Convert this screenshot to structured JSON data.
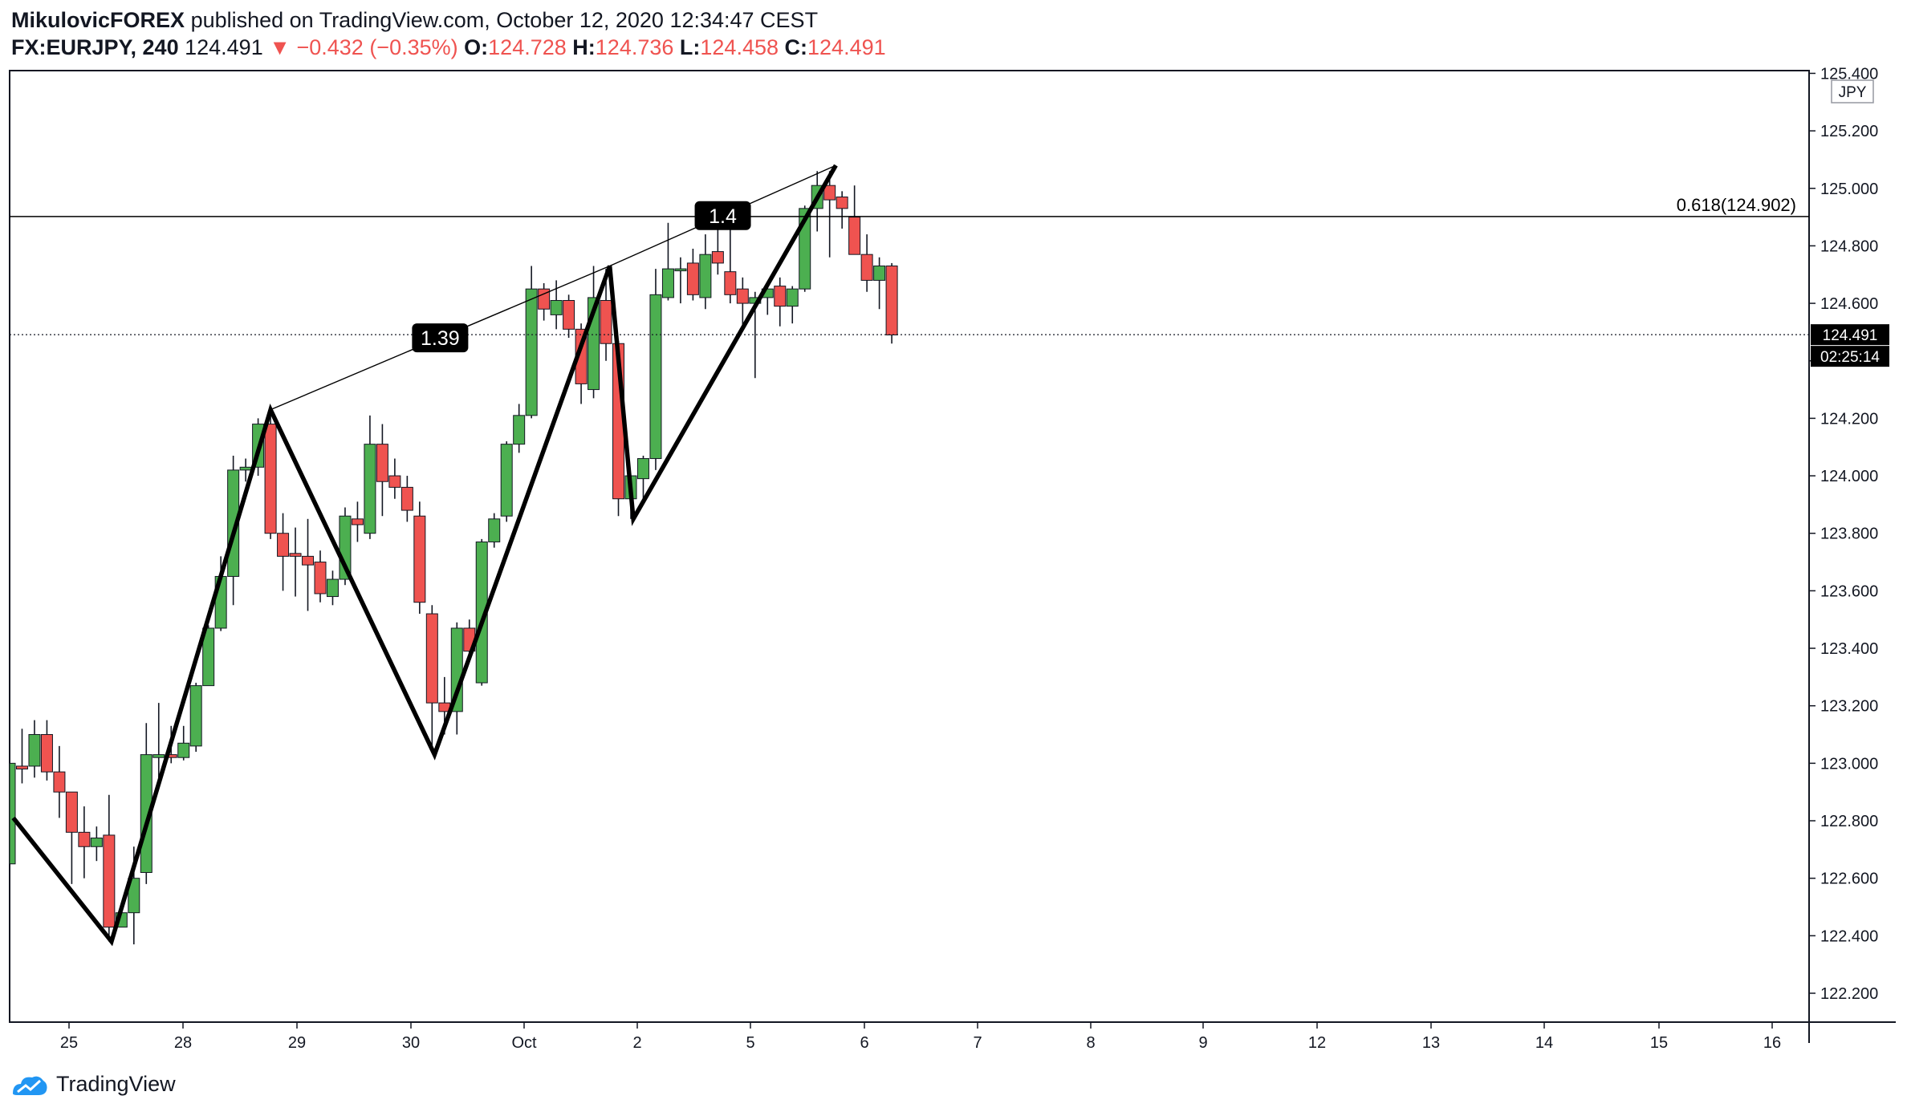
{
  "header": {
    "author": "MikulovicFOREX",
    "published_text": "published on TradingView.com, October 12, 2020 12:34:47 CEST",
    "symbol": "FX:EURJPY, 240",
    "last": "124.491",
    "change": "−0.432 (−0.35%)",
    "o_label": "O:",
    "o_value": "124.728",
    "h_label": "H:",
    "h_value": "124.736",
    "l_label": "L:",
    "l_value": "124.458",
    "c_label": "C:",
    "c_value": "124.491"
  },
  "currency_label": "JPY",
  "price_badge": "124.491",
  "countdown_badge": "02:25:14",
  "fib_label": "0.618(124.902)",
  "ratio_labels": [
    "1.39",
    "1.4"
  ],
  "footer_brand": "TradingView",
  "colors": {
    "up": "#4caf50",
    "down": "#ef5350",
    "wick": "#131722",
    "fib_line": "#000000"
  },
  "chart_data": {
    "type": "candlestick",
    "timeframe": "240",
    "ylim": [
      122.1,
      125.45
    ],
    "yticks": [
      "125.400",
      "125.200",
      "125.000",
      "124.800",
      "124.600",
      "124.400",
      "124.200",
      "124.000",
      "123.800",
      "123.600",
      "123.400",
      "123.200",
      "123.000",
      "122.800",
      "122.600",
      "122.400",
      "122.200"
    ],
    "xticks": [
      "25",
      "28",
      "29",
      "30",
      "Oct",
      "2",
      "5",
      "6",
      "7",
      "8",
      "9",
      "12",
      "13",
      "14",
      "15",
      "16"
    ],
    "fib_level": 124.902,
    "last_price": 124.491,
    "candles": [
      {
        "o": 122.65,
        "h": 123.0,
        "l": 122.62,
        "c": 123.0
      },
      {
        "o": 122.99,
        "h": 123.12,
        "l": 122.93,
        "c": 122.98
      },
      {
        "o": 122.99,
        "h": 123.15,
        "l": 122.95,
        "c": 123.1
      },
      {
        "o": 123.1,
        "h": 123.15,
        "l": 122.94,
        "c": 122.97
      },
      {
        "o": 122.97,
        "h": 123.06,
        "l": 122.81,
        "c": 122.9
      },
      {
        "o": 122.9,
        "h": 122.9,
        "l": 122.58,
        "c": 122.76
      },
      {
        "o": 122.76,
        "h": 122.85,
        "l": 122.6,
        "c": 122.71
      },
      {
        "o": 122.71,
        "h": 122.78,
        "l": 122.66,
        "c": 122.74
      },
      {
        "o": 122.75,
        "h": 122.89,
        "l": 122.38,
        "c": 122.43
      },
      {
        "o": 122.43,
        "h": 122.5,
        "l": 122.43,
        "c": 122.48
      },
      {
        "o": 122.48,
        "h": 122.71,
        "l": 122.37,
        "c": 122.6
      },
      {
        "o": 122.62,
        "h": 123.14,
        "l": 122.58,
        "c": 123.03
      },
      {
        "o": 123.02,
        "h": 123.21,
        "l": 122.95,
        "c": 123.03
      },
      {
        "o": 123.03,
        "h": 123.13,
        "l": 123.0,
        "c": 123.02
      },
      {
        "o": 123.02,
        "h": 123.13,
        "l": 123.01,
        "c": 123.07
      },
      {
        "o": 123.06,
        "h": 123.28,
        "l": 123.04,
        "c": 123.27
      },
      {
        "o": 123.27,
        "h": 123.48,
        "l": 123.27,
        "c": 123.47
      },
      {
        "o": 123.47,
        "h": 123.72,
        "l": 123.46,
        "c": 123.65
      },
      {
        "o": 123.65,
        "h": 124.07,
        "l": 123.55,
        "c": 124.02
      },
      {
        "o": 124.02,
        "h": 124.06,
        "l": 123.98,
        "c": 124.03
      },
      {
        "o": 124.03,
        "h": 124.2,
        "l": 124.0,
        "c": 124.18
      },
      {
        "o": 124.18,
        "h": 124.22,
        "l": 123.78,
        "c": 123.8
      },
      {
        "o": 123.8,
        "h": 123.87,
        "l": 123.6,
        "c": 123.72
      },
      {
        "o": 123.73,
        "h": 123.82,
        "l": 123.58,
        "c": 123.72
      },
      {
        "o": 123.72,
        "h": 123.85,
        "l": 123.53,
        "c": 123.69
      },
      {
        "o": 123.7,
        "h": 123.74,
        "l": 123.56,
        "c": 123.59
      },
      {
        "o": 123.58,
        "h": 123.67,
        "l": 123.55,
        "c": 123.64
      },
      {
        "o": 123.64,
        "h": 123.89,
        "l": 123.62,
        "c": 123.86
      },
      {
        "o": 123.85,
        "h": 123.91,
        "l": 123.77,
        "c": 123.83
      },
      {
        "o": 123.8,
        "h": 124.21,
        "l": 123.78,
        "c": 124.11
      },
      {
        "o": 124.11,
        "h": 124.18,
        "l": 123.86,
        "c": 123.98
      },
      {
        "o": 124.0,
        "h": 124.06,
        "l": 123.92,
        "c": 123.96
      },
      {
        "o": 123.96,
        "h": 124.0,
        "l": 123.84,
        "c": 123.88
      },
      {
        "o": 123.86,
        "h": 123.91,
        "l": 123.52,
        "c": 123.56
      },
      {
        "o": 123.52,
        "h": 123.55,
        "l": 123.04,
        "c": 123.21
      },
      {
        "o": 123.21,
        "h": 123.3,
        "l": 123.1,
        "c": 123.18
      },
      {
        "o": 123.18,
        "h": 123.49,
        "l": 123.1,
        "c": 123.47
      },
      {
        "o": 123.47,
        "h": 123.5,
        "l": 123.38,
        "c": 123.39
      },
      {
        "o": 123.28,
        "h": 123.78,
        "l": 123.27,
        "c": 123.77
      },
      {
        "o": 123.77,
        "h": 123.87,
        "l": 123.75,
        "c": 123.85
      },
      {
        "o": 123.86,
        "h": 124.12,
        "l": 123.84,
        "c": 124.11
      },
      {
        "o": 124.11,
        "h": 124.25,
        "l": 124.08,
        "c": 124.21
      },
      {
        "o": 124.21,
        "h": 124.73,
        "l": 124.2,
        "c": 124.65
      },
      {
        "o": 124.65,
        "h": 124.67,
        "l": 124.54,
        "c": 124.58
      },
      {
        "o": 124.56,
        "h": 124.68,
        "l": 124.51,
        "c": 124.61
      },
      {
        "o": 124.61,
        "h": 124.63,
        "l": 124.48,
        "c": 124.51
      },
      {
        "o": 124.51,
        "h": 124.53,
        "l": 124.25,
        "c": 124.32
      },
      {
        "o": 124.3,
        "h": 124.73,
        "l": 124.27,
        "c": 124.62
      },
      {
        "o": 124.61,
        "h": 124.72,
        "l": 124.4,
        "c": 124.46
      },
      {
        "o": 124.46,
        "h": 124.47,
        "l": 123.86,
        "c": 123.92
      },
      {
        "o": 123.92,
        "h": 124.0,
        "l": 123.85,
        "c": 124.0
      },
      {
        "o": 123.99,
        "h": 124.07,
        "l": 123.9,
        "c": 124.06
      },
      {
        "o": 124.06,
        "h": 124.72,
        "l": 124.02,
        "c": 124.63
      },
      {
        "o": 124.62,
        "h": 124.88,
        "l": 124.61,
        "c": 124.72
      },
      {
        "o": 124.72,
        "h": 124.76,
        "l": 124.6,
        "c": 124.72
      },
      {
        "o": 124.74,
        "h": 124.79,
        "l": 124.61,
        "c": 124.63
      },
      {
        "o": 124.62,
        "h": 124.84,
        "l": 124.58,
        "c": 124.77
      },
      {
        "o": 124.78,
        "h": 124.88,
        "l": 124.7,
        "c": 124.74
      },
      {
        "o": 124.71,
        "h": 124.88,
        "l": 124.6,
        "c": 124.63
      },
      {
        "o": 124.65,
        "h": 124.69,
        "l": 124.52,
        "c": 124.6
      },
      {
        "o": 124.6,
        "h": 124.64,
        "l": 124.34,
        "c": 124.62
      },
      {
        "o": 124.62,
        "h": 124.67,
        "l": 124.56,
        "c": 124.65
      },
      {
        "o": 124.66,
        "h": 124.69,
        "l": 124.52,
        "c": 124.59
      },
      {
        "o": 124.59,
        "h": 124.66,
        "l": 124.53,
        "c": 124.65
      },
      {
        "o": 124.65,
        "h": 124.94,
        "l": 124.64,
        "c": 124.93
      },
      {
        "o": 124.93,
        "h": 125.06,
        "l": 124.85,
        "c": 125.01
      },
      {
        "o": 125.01,
        "h": 125.06,
        "l": 124.76,
        "c": 124.96
      },
      {
        "o": 124.97,
        "h": 124.99,
        "l": 124.86,
        "c": 124.93
      },
      {
        "o": 124.9,
        "h": 125.01,
        "l": 124.77,
        "c": 124.77
      },
      {
        "o": 124.77,
        "h": 124.84,
        "l": 124.64,
        "c": 124.68
      },
      {
        "o": 124.68,
        "h": 124.76,
        "l": 124.58,
        "c": 124.73
      },
      {
        "o": 124.73,
        "h": 124.74,
        "l": 124.46,
        "c": 124.49
      }
    ],
    "pattern_path": [
      {
        "bar": 0.3,
        "price": 122.81
      },
      {
        "bar": 8.2,
        "price": 122.38
      },
      {
        "bar": 21.0,
        "price": 124.23
      },
      {
        "bar": 34.2,
        "price": 123.03
      },
      {
        "bar": 48.3,
        "price": 124.73
      },
      {
        "bar": 50.2,
        "price": 123.85
      },
      {
        "bar": 66.5,
        "price": 125.08
      }
    ],
    "ratio_lines": [
      {
        "from": {
          "bar": 21.0,
          "price": 124.23
        },
        "to": {
          "bar": 48.3,
          "price": 124.73
        },
        "label": "1.39"
      },
      {
        "from": {
          "bar": 48.3,
          "price": 124.73
        },
        "to": {
          "bar": 66.5,
          "price": 125.08
        },
        "label": "1.4"
      }
    ]
  }
}
